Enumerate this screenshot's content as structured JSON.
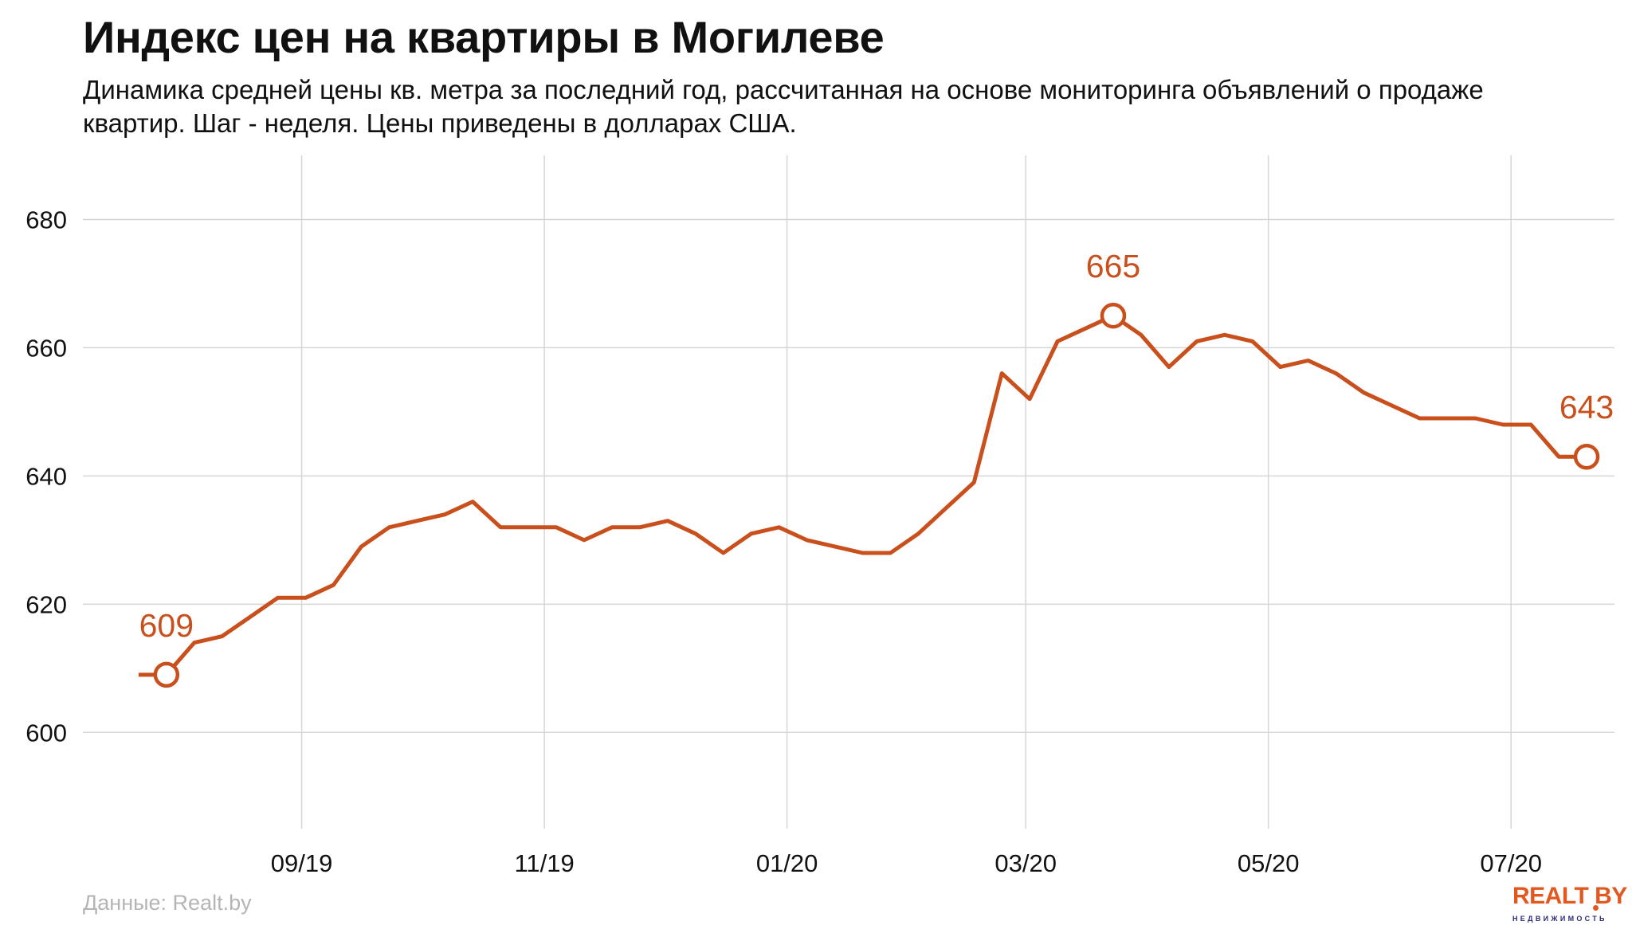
{
  "title": "Индекс цен на квартиры в Могилеве",
  "subtitle": "Динамика средней цены кв. метра за последний год, рассчитанная на основе мониторинга объявлений о продаже квартир. Шаг - неделя. Цены приведены в долларах США.",
  "source": "Данные: Realt.by",
  "logo": {
    "main": "REALT BY",
    "sub": "НЕДВИЖИМОСТЬ"
  },
  "colors": {
    "line": "#c9501c",
    "grid": "#d6d6d6",
    "logo": "#e2581e"
  },
  "chart_data": {
    "type": "line",
    "title": "Индекс цен на квартиры в Могилеве",
    "xlabel": "",
    "ylabel": "",
    "ylim": [
      585,
      690
    ],
    "xlim": [
      "2019-07-08",
      "2020-07-27"
    ],
    "grid": true,
    "legend": "none",
    "y_ticks": [
      600,
      620,
      640,
      660,
      680
    ],
    "x_ticks": [
      {
        "date": "2019-09-01",
        "label": "09/19"
      },
      {
        "date": "2019-11-01",
        "label": "11/19"
      },
      {
        "date": "2020-01-01",
        "label": "01/20"
      },
      {
        "date": "2020-03-01",
        "label": "03/20"
      },
      {
        "date": "2020-05-01",
        "label": "05/20"
      },
      {
        "date": "2020-07-01",
        "label": "07/20"
      }
    ],
    "series": [
      {
        "x": [
          "2019-07-22",
          "2019-07-29",
          "2019-08-05",
          "2019-08-12",
          "2019-08-19",
          "2019-08-26",
          "2019-09-02",
          "2019-09-09",
          "2019-09-16",
          "2019-09-23",
          "2019-09-30",
          "2019-10-07",
          "2019-10-14",
          "2019-10-21",
          "2019-10-28",
          "2019-11-04",
          "2019-11-11",
          "2019-11-18",
          "2019-11-25",
          "2019-12-02",
          "2019-12-09",
          "2019-12-16",
          "2019-12-23",
          "2019-12-30",
          "2020-01-06",
          "2020-01-13",
          "2020-01-20",
          "2020-01-27",
          "2020-02-03",
          "2020-02-10",
          "2020-02-17",
          "2020-02-24",
          "2020-03-02",
          "2020-03-09",
          "2020-03-16",
          "2020-03-23",
          "2020-03-30",
          "2020-04-06",
          "2020-04-13",
          "2020-04-20",
          "2020-04-27",
          "2020-05-04",
          "2020-05-11",
          "2020-05-18",
          "2020-05-25",
          "2020-06-01",
          "2020-06-08",
          "2020-06-15",
          "2020-06-22",
          "2020-06-29",
          "2020-07-06",
          "2020-07-13",
          "2020-07-20"
        ],
        "values": [
          609,
          609,
          614,
          615,
          618,
          621,
          621,
          623,
          629,
          632,
          633,
          634,
          636,
          632,
          632,
          632,
          630,
          632,
          632,
          633,
          631,
          628,
          631,
          632,
          630,
          629,
          628,
          628,
          631,
          635,
          639,
          656,
          652,
          661,
          663,
          665,
          662,
          657,
          661,
          662,
          661,
          657,
          658,
          656,
          653,
          651,
          649,
          649,
          649,
          648,
          648,
          643,
          643
        ]
      }
    ],
    "annotations": [
      {
        "x": "2019-07-29",
        "y": 609,
        "text": "609"
      },
      {
        "x": "2020-03-23",
        "y": 665,
        "text": "665"
      },
      {
        "x": "2020-07-20",
        "y": 643,
        "text": "643"
      }
    ]
  }
}
